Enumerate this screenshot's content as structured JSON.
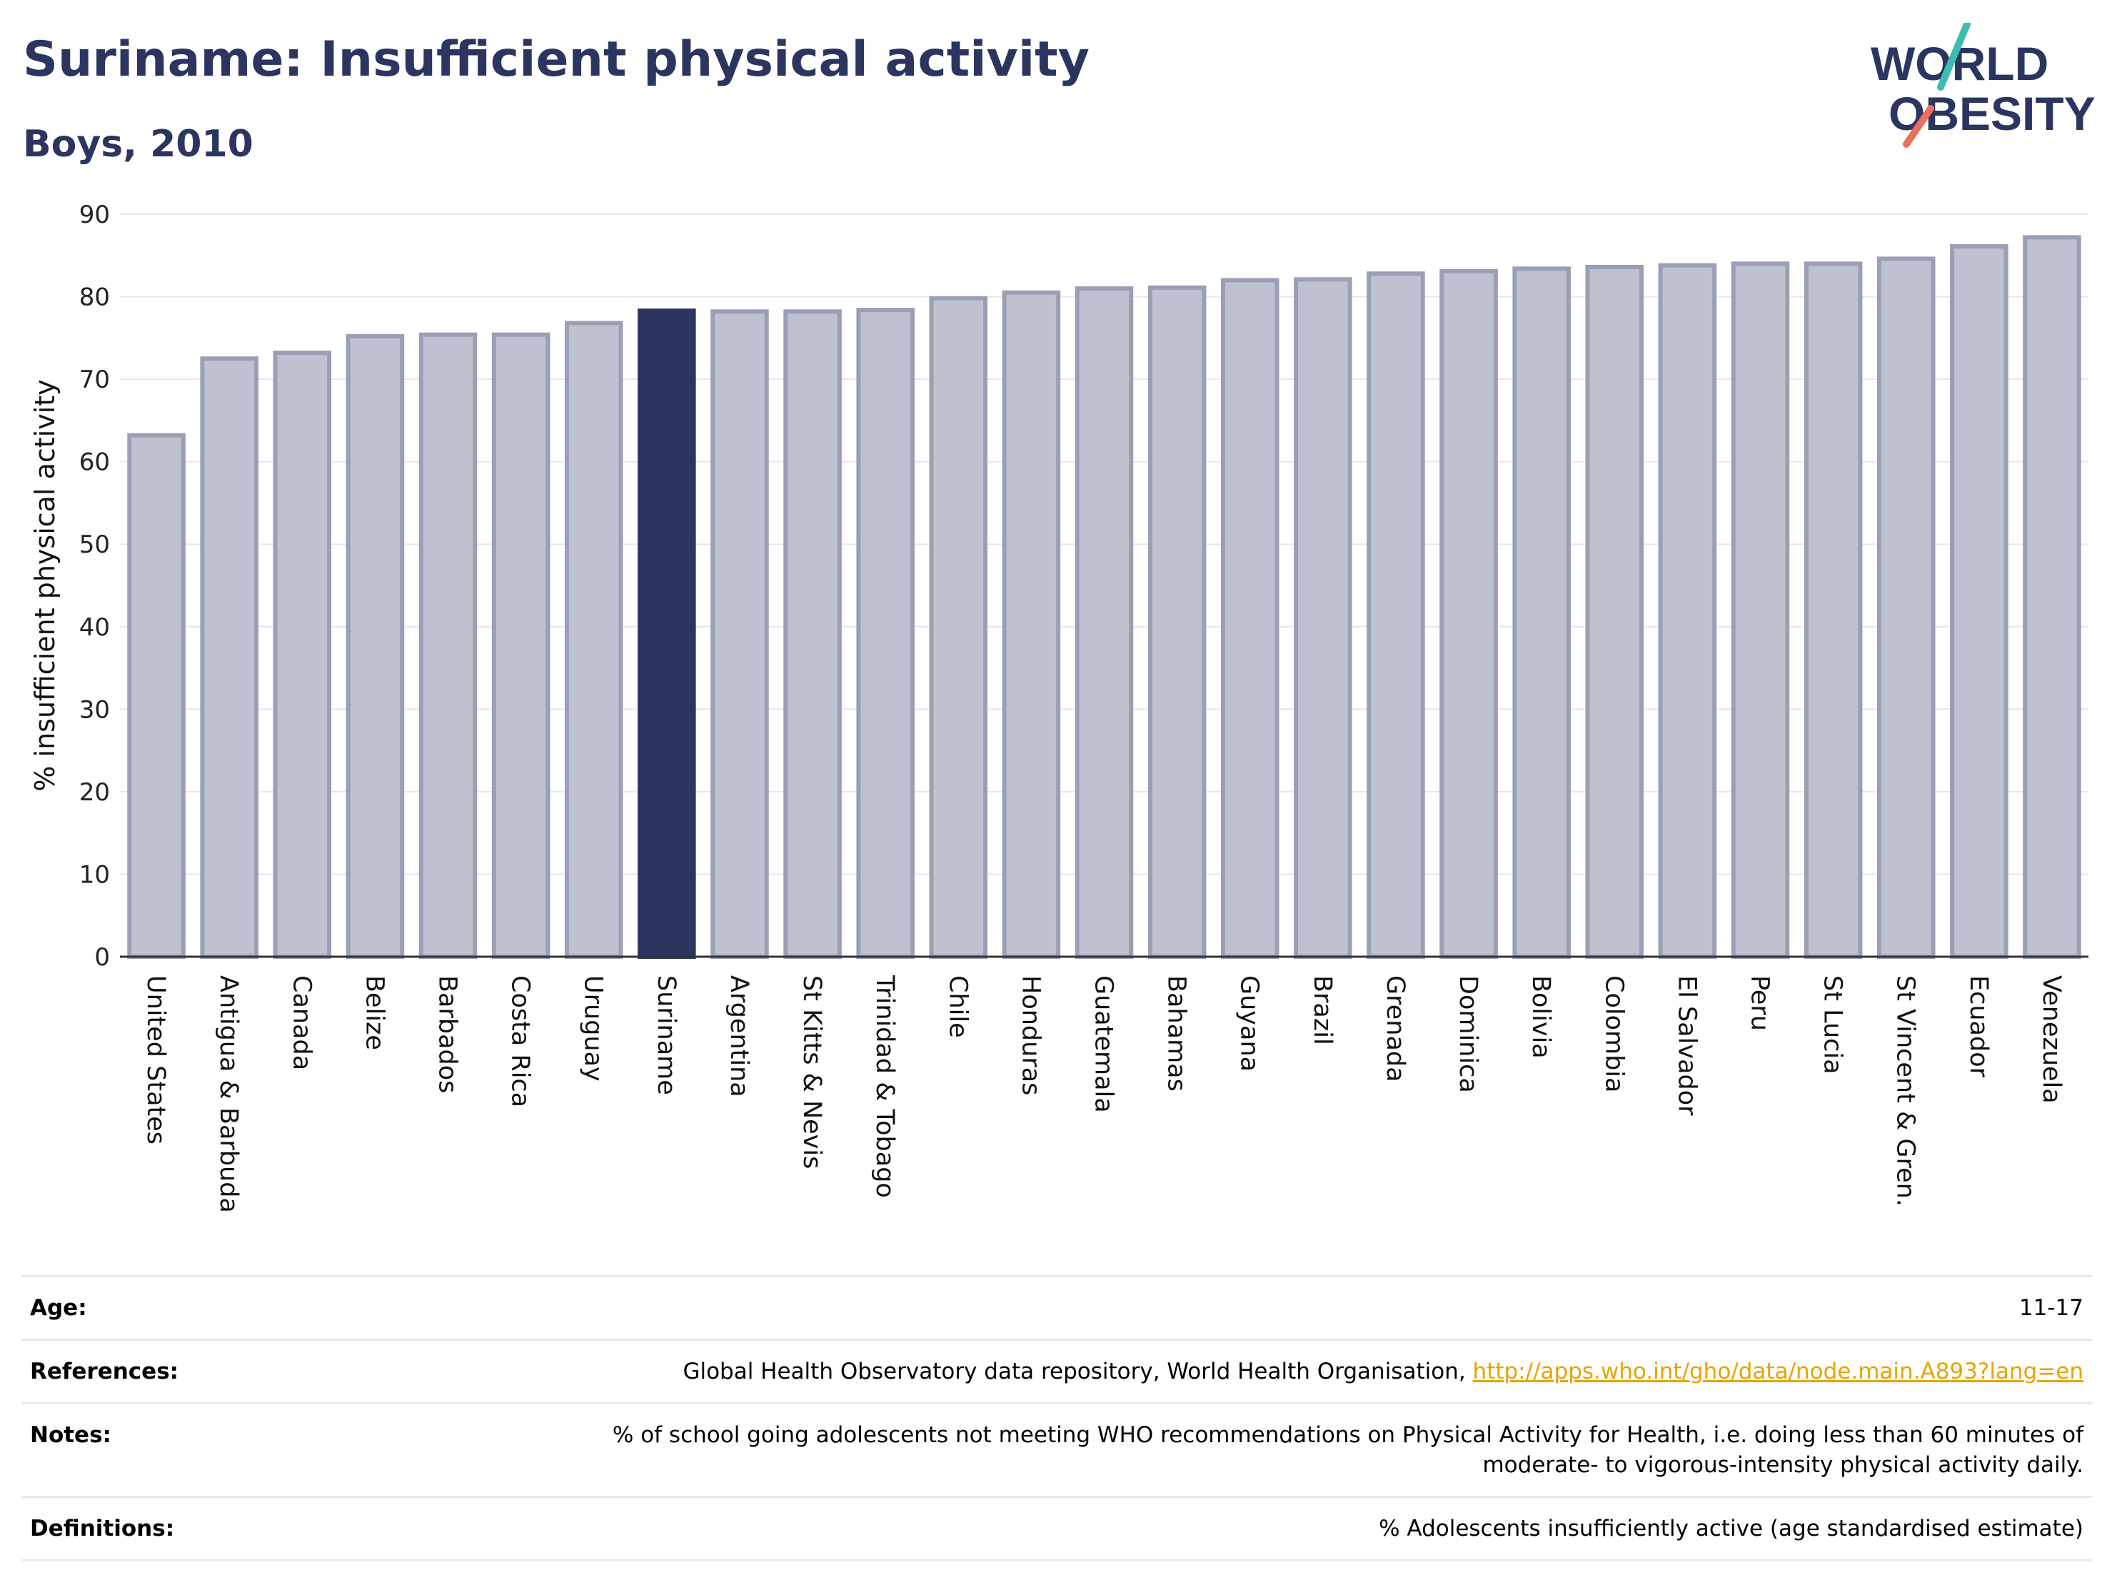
{
  "title": "Suriname: Insufficient physical activity",
  "subtitle": "Boys, 2010",
  "logo": {
    "line1": "WORLD",
    "line2": "OBESITY"
  },
  "colors": {
    "title": "#2b3560",
    "bar": "#bec1cf",
    "bar_border": "#9a9fb5",
    "highlight": "#2b3560",
    "link": "#e6a400",
    "grid": "#e6e6ee",
    "logo_teal": "#3dbdb2",
    "logo_coral": "#e8705e"
  },
  "chart_data": {
    "type": "bar",
    "ylabel": "% insufficient physical activity",
    "xlabel": "",
    "ylim": [
      0,
      90
    ],
    "yticks": [
      0,
      10,
      20,
      30,
      40,
      50,
      60,
      70,
      80,
      90
    ],
    "grid": true,
    "highlight": "Suriname",
    "categories": [
      "United States",
      "Antigua & Barbuda",
      "Canada",
      "Belize",
      "Barbados",
      "Costa Rica",
      "Uruguay",
      "Suriname",
      "Argentina",
      "St Kitts & Nevis",
      "Trinidad & Tobago",
      "Chile",
      "Honduras",
      "Guatemala",
      "Bahamas",
      "Guyana",
      "Brazil",
      "Grenada",
      "Dominica",
      "Bolivia",
      "Colombia",
      "El Salvador",
      "Peru",
      "St Lucia",
      "St Vincent & Gren.",
      "Ecuador",
      "Venezuela"
    ],
    "values": [
      63.2,
      72.5,
      73.2,
      75.2,
      75.4,
      75.4,
      76.8,
      78.3,
      78.2,
      78.2,
      78.4,
      79.8,
      80.5,
      81.0,
      81.1,
      82.0,
      82.1,
      82.8,
      83.1,
      83.4,
      83.6,
      83.8,
      84.0,
      84.0,
      84.6,
      86.1,
      87.2
    ]
  },
  "info": {
    "age_label": "Age:",
    "age_value": "11-17",
    "references_label": "References:",
    "references_text": "Global Health Observatory data repository, World Health Organisation, ",
    "references_link": "http://apps.who.int/gho/data/node.main.A893?lang=en",
    "notes_label": "Notes:",
    "notes_line1": "% of school going adolescents not meeting WHO recommendations on Physical Activity for Health, i.e. doing less than 60 minutes of",
    "notes_line2": "moderate- to vigorous-intensity physical activity daily.",
    "definitions_label": "Definitions:",
    "definitions_value": "% Adolescents insufficiently active (age standardised estimate)"
  }
}
